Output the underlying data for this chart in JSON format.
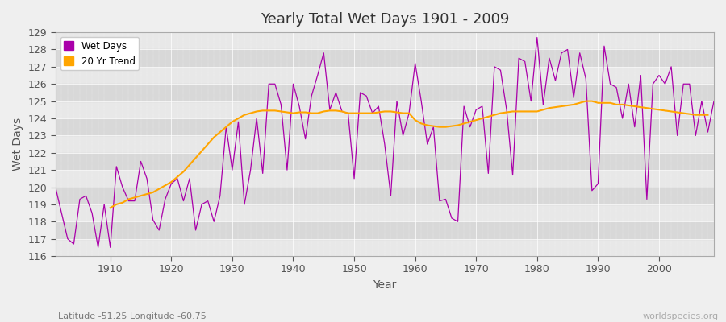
{
  "title": "Yearly Total Wet Days 1901 - 2009",
  "xlabel": "Year",
  "ylabel": "Wet Days",
  "subtitle": "Latitude -51.25 Longitude -60.75",
  "watermark": "worldspecies.org",
  "ylim": [
    116,
    129
  ],
  "xlim": [
    1901,
    2009
  ],
  "wet_days_color": "#AA00AA",
  "trend_color": "#FFA500",
  "bg_color": "#E8E8E8",
  "bg_stripe_color": "#D8D8D8",
  "legend_entries": [
    "Wet Days",
    "20 Yr Trend"
  ],
  "years": [
    1901,
    1902,
    1903,
    1904,
    1905,
    1906,
    1907,
    1908,
    1909,
    1910,
    1911,
    1912,
    1913,
    1914,
    1915,
    1916,
    1917,
    1918,
    1919,
    1920,
    1921,
    1922,
    1923,
    1924,
    1925,
    1926,
    1927,
    1928,
    1929,
    1930,
    1931,
    1932,
    1933,
    1934,
    1935,
    1936,
    1937,
    1938,
    1939,
    1940,
    1941,
    1942,
    1943,
    1944,
    1945,
    1946,
    1947,
    1948,
    1949,
    1950,
    1951,
    1952,
    1953,
    1954,
    1955,
    1956,
    1957,
    1958,
    1959,
    1960,
    1961,
    1962,
    1963,
    1964,
    1965,
    1966,
    1967,
    1968,
    1969,
    1970,
    1971,
    1972,
    1973,
    1974,
    1975,
    1976,
    1977,
    1978,
    1979,
    1980,
    1981,
    1982,
    1983,
    1984,
    1985,
    1986,
    1987,
    1988,
    1989,
    1990,
    1991,
    1992,
    1993,
    1994,
    1995,
    1996,
    1997,
    1998,
    1999,
    2000,
    2001,
    2002,
    2003,
    2004,
    2005,
    2006,
    2007,
    2008,
    2009
  ],
  "wet_days": [
    120,
    118.5,
    117,
    116.7,
    119.3,
    119.5,
    118.5,
    116.5,
    119.0,
    116.5,
    121.2,
    120.0,
    119.2,
    119.2,
    121.5,
    120.5,
    118.1,
    117.5,
    119.3,
    120.2,
    120.5,
    119.2,
    120.5,
    117.5,
    119.0,
    119.2,
    118.0,
    119.5,
    123.5,
    121.0,
    123.8,
    119.0,
    121.0,
    124.0,
    120.8,
    126.0,
    126.0,
    124.8,
    121.0,
    126.0,
    124.7,
    122.8,
    125.3,
    126.5,
    127.8,
    124.5,
    125.5,
    124.4,
    124.3,
    120.5,
    125.5,
    125.3,
    124.3,
    124.7,
    122.5,
    119.5,
    125.0,
    123.0,
    124.3,
    127.2,
    125.0,
    122.5,
    123.5,
    119.2,
    119.3,
    118.2,
    118.0,
    124.7,
    123.5,
    124.5,
    124.7,
    120.8,
    127.0,
    126.8,
    124.5,
    120.7,
    127.5,
    127.3,
    125.0,
    128.7,
    124.8,
    127.5,
    126.2,
    127.8,
    128.0,
    125.2,
    127.8,
    126.3,
    119.8,
    120.2,
    128.2,
    126.0,
    125.8,
    124.0,
    126.0,
    123.5,
    126.5,
    119.3,
    126.0,
    126.5,
    126.0,
    127.0,
    123.0,
    126.0,
    126.0,
    123.0,
    125.0,
    123.2,
    125.0
  ],
  "trend_years": [
    1910,
    1911,
    1912,
    1913,
    1914,
    1915,
    1916,
    1917,
    1918,
    1919,
    1920,
    1921,
    1922,
    1923,
    1924,
    1925,
    1926,
    1927,
    1928,
    1929,
    1930,
    1931,
    1932,
    1933,
    1934,
    1935,
    1936,
    1937,
    1938,
    1939,
    1940,
    1941,
    1942,
    1943,
    1944,
    1945,
    1946,
    1947,
    1948,
    1949,
    1950,
    1951,
    1952,
    1953,
    1954,
    1955,
    1956,
    1957,
    1958,
    1959,
    1960,
    1961,
    1962,
    1963,
    1964,
    1965,
    1966,
    1967,
    1968,
    1969,
    1970,
    1971,
    1972,
    1973,
    1974,
    1975,
    1976,
    1977,
    1978,
    1979,
    1980,
    1981,
    1982,
    1983,
    1984,
    1985,
    1986,
    1987,
    1988,
    1989,
    1990,
    1991,
    1992,
    1993,
    1994,
    1995,
    1996,
    1997,
    1998,
    1999,
    2000,
    2001,
    2002,
    2003,
    2004,
    2005,
    2006,
    2007,
    2008
  ],
  "trend": [
    118.8,
    119.0,
    119.1,
    119.3,
    119.4,
    119.5,
    119.6,
    119.7,
    119.9,
    120.1,
    120.3,
    120.6,
    120.9,
    121.3,
    121.7,
    122.1,
    122.5,
    122.9,
    123.2,
    123.5,
    123.8,
    124.0,
    124.2,
    124.3,
    124.4,
    124.45,
    124.45,
    124.45,
    124.4,
    124.35,
    124.3,
    124.35,
    124.35,
    124.3,
    124.3,
    124.4,
    124.45,
    124.45,
    124.4,
    124.3,
    124.3,
    124.3,
    124.3,
    124.3,
    124.35,
    124.4,
    124.4,
    124.35,
    124.3,
    124.3,
    123.9,
    123.7,
    123.6,
    123.55,
    123.5,
    123.5,
    123.55,
    123.6,
    123.7,
    123.8,
    123.9,
    124.0,
    124.1,
    124.2,
    124.3,
    124.35,
    124.4,
    124.4,
    124.4,
    124.4,
    124.4,
    124.5,
    124.6,
    124.65,
    124.7,
    124.75,
    124.8,
    124.9,
    125.0,
    125.0,
    124.9,
    124.9,
    124.9,
    124.8,
    124.8,
    124.75,
    124.7,
    124.65,
    124.6,
    124.55,
    124.5,
    124.45,
    124.4,
    124.35,
    124.3,
    124.25,
    124.2,
    124.2,
    124.2
  ]
}
